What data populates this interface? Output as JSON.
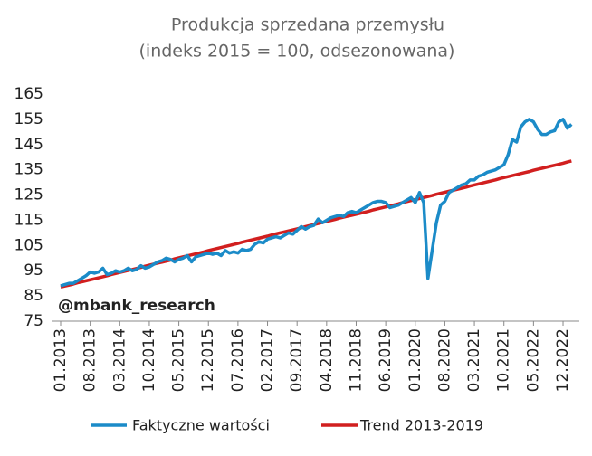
{
  "chart_data": {
    "type": "line",
    "title": "Produkcja sprzedana przemysłu",
    "subtitle": "(indeks 2015 = 100, odsezonowana)",
    "annotation": "@mbank_research",
    "categories": [
      "01.2013",
      null,
      null,
      null,
      null,
      null,
      null,
      "08.2013",
      null,
      null,
      null,
      null,
      null,
      null,
      "03.2014",
      null,
      null,
      null,
      null,
      null,
      null,
      "10.2014",
      null,
      null,
      null,
      null,
      null,
      null,
      "05.2015",
      null,
      null,
      null,
      null,
      null,
      null,
      "12.2015",
      null,
      null,
      null,
      null,
      null,
      null,
      "07.2016",
      null,
      null,
      null,
      null,
      null,
      null,
      "02.2017",
      null,
      null,
      null,
      null,
      null,
      null,
      "09.2017",
      null,
      null,
      null,
      null,
      null,
      null,
      "04.2018",
      null,
      null,
      null,
      null,
      null,
      null,
      "11.2018",
      null,
      null,
      null,
      null,
      null,
      null,
      "06.2019",
      null,
      null,
      null,
      null,
      null,
      null,
      "01.2020",
      null,
      null,
      null,
      null,
      null,
      null,
      "08.2020",
      null,
      null,
      null,
      null,
      null,
      null,
      "03.2021",
      null,
      null,
      null,
      null,
      null,
      null,
      "10.2021",
      null,
      null,
      null,
      null,
      null,
      null,
      "05.2022",
      null,
      null,
      null,
      null,
      null,
      null,
      "12.2022",
      null,
      null
    ],
    "series": [
      {
        "name": "Faktyczne wartości",
        "color": "#1b8bc8",
        "values": [
          89,
          89.5,
          90,
          90,
          91,
          92,
          93,
          94.5,
          94,
          94.5,
          96,
          93.5,
          94,
          95,
          94.5,
          95,
          96,
          95,
          95.5,
          97,
          96,
          96.5,
          97.5,
          98.5,
          99,
          100,
          99.5,
          98.5,
          99.5,
          100,
          101,
          98.5,
          100.5,
          101,
          101.5,
          102,
          101.5,
          102,
          101,
          103,
          102,
          102.5,
          102,
          103.5,
          103,
          103.5,
          105.5,
          106.5,
          106,
          107.5,
          108,
          108.5,
          108,
          109,
          110,
          109.5,
          111,
          112.5,
          111.5,
          112.5,
          113,
          115.5,
          114,
          115,
          116,
          116.5,
          117,
          116.5,
          118,
          118.5,
          118,
          119,
          120,
          121,
          122,
          122.5,
          122.5,
          122,
          120,
          120.5,
          121,
          122,
          123,
          124,
          122,
          126,
          122,
          92,
          103,
          114,
          121,
          122.5,
          126,
          127,
          128,
          129,
          129.5,
          131,
          131,
          132.5,
          133,
          134,
          134.5,
          135,
          136,
          137,
          141,
          147,
          146,
          152,
          154,
          155,
          154,
          151,
          149,
          149,
          150,
          150.5,
          154,
          155,
          151.5,
          153
        ]
      },
      {
        "name": "Trend 2013-2019",
        "color": "#d11f1f",
        "values": [
          88.5,
          88.9,
          89.3,
          89.7,
          90.2,
          90.6,
          91.0,
          91.4,
          91.8,
          92.2,
          92.6,
          93.0,
          93.5,
          93.9,
          94.3,
          94.7,
          95.1,
          95.5,
          95.9,
          96.3,
          96.8,
          97.2,
          97.6,
          98.0,
          98.4,
          98.8,
          99.2,
          99.7,
          100.1,
          100.5,
          100.9,
          101.3,
          101.7,
          102.1,
          102.5,
          103.0,
          103.4,
          103.8,
          104.2,
          104.6,
          105.0,
          105.4,
          105.8,
          106.3,
          106.7,
          107.1,
          107.5,
          107.9,
          108.3,
          108.7,
          109.2,
          109.6,
          110.0,
          110.4,
          110.8,
          111.2,
          111.6,
          112.0,
          112.5,
          112.9,
          113.3,
          113.7,
          114.1,
          114.5,
          114.9,
          115.3,
          115.8,
          116.2,
          116.6,
          117.0,
          117.4,
          117.8,
          118.2,
          118.6,
          119.1,
          119.5,
          119.9,
          120.3,
          120.7,
          121.1,
          121.5,
          122.0,
          122.4,
          122.8,
          123.2,
          123.6,
          124.0,
          124.4,
          124.8,
          125.3,
          125.7,
          126.1,
          126.5,
          126.9,
          127.3,
          127.7,
          128.1,
          128.6,
          129.0,
          129.4,
          129.8,
          130.2,
          130.6,
          131.0,
          131.5,
          131.9,
          132.3,
          132.7,
          133.1,
          133.5,
          133.9,
          134.3,
          134.8,
          135.2,
          135.6,
          136.0,
          136.4,
          136.8,
          137.2,
          137.6,
          138.1,
          138.5
        ]
      }
    ],
    "ylim": [
      75,
      165
    ],
    "yticks": [
      75,
      85,
      95,
      105,
      115,
      125,
      135,
      145,
      155,
      165
    ],
    "grid": false
  }
}
